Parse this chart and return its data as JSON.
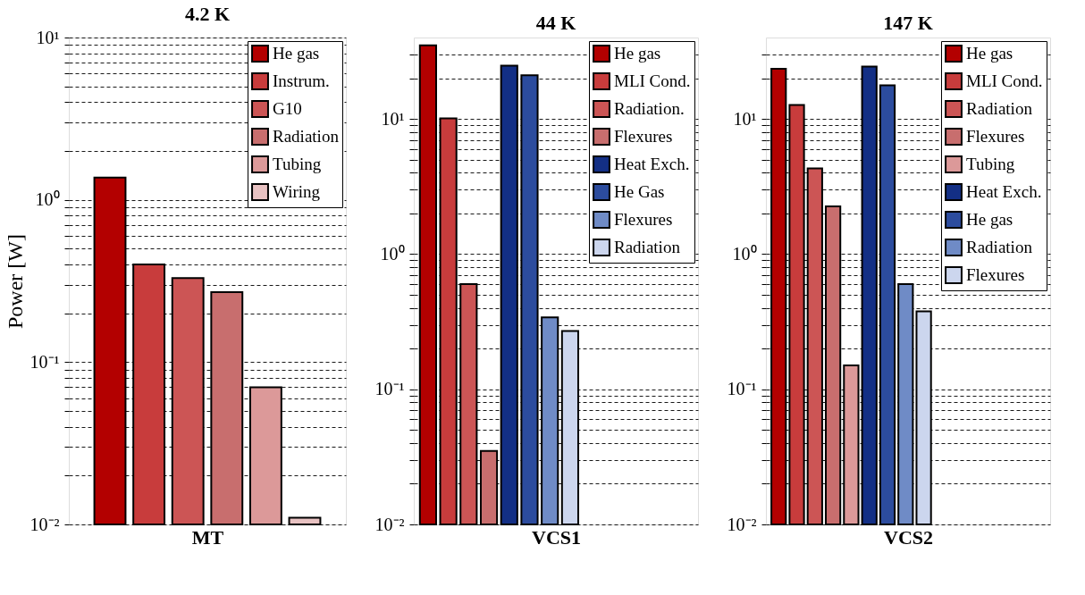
{
  "chart_data": [
    {
      "type": "bar",
      "title": "4.2 K",
      "xlabel": "MT",
      "ylabel": "Power [W]",
      "categories": [
        null
      ],
      "log": true,
      "ylim": [
        0.01,
        10
      ],
      "grid": "y",
      "legend": "top right",
      "tick_labels": "y",
      "yticks": [
        {
          "value": 0.01,
          "label": "10⁻²"
        },
        {
          "value": 0.02,
          "label": null
        },
        {
          "value": 0.03,
          "label": null
        },
        {
          "value": 0.04,
          "label": null
        },
        {
          "value": 0.05,
          "label": null
        },
        {
          "value": 0.06,
          "label": null
        },
        {
          "value": 0.07,
          "label": null
        },
        {
          "value": 0.08,
          "label": null
        },
        {
          "value": 0.09,
          "label": null
        },
        {
          "value": 0.1,
          "label": "10⁻¹"
        },
        {
          "value": 0.2,
          "label": null
        },
        {
          "value": 0.3,
          "label": null
        },
        {
          "value": 0.4,
          "label": null
        },
        {
          "value": 0.5,
          "label": null
        },
        {
          "value": 0.6,
          "label": null
        },
        {
          "value": 0.7,
          "label": null
        },
        {
          "value": 0.8,
          "label": null
        },
        {
          "value": 0.9,
          "label": null
        },
        {
          "value": 1,
          "label": "10⁰"
        },
        {
          "value": 2,
          "label": null
        },
        {
          "value": 3,
          "label": null
        },
        {
          "value": 4,
          "label": null
        },
        {
          "value": 5,
          "label": null
        },
        {
          "value": 6,
          "label": null
        },
        {
          "value": 7,
          "label": null
        },
        {
          "value": 8,
          "label": null
        },
        {
          "value": 9,
          "label": null
        },
        {
          "value": 10,
          "label": "10¹"
        }
      ],
      "series": [
        {
          "name": "He gas",
          "color": "#b30000",
          "values": [
            1.37
          ]
        },
        {
          "name": "Instrum.",
          "color": "#c83c3c",
          "values": [
            0.4
          ]
        },
        {
          "name": "G10",
          "color": "#cc5555",
          "values": [
            0.33
          ]
        },
        {
          "name": "Radiation",
          "color": "#c86e6e",
          "values": [
            0.27
          ]
        },
        {
          "name": "Tubing",
          "color": "#dc9999",
          "values": [
            0.07
          ]
        },
        {
          "name": "Wiring",
          "color": "#e8c2c2",
          "values": [
            0.011
          ]
        }
      ]
    },
    {
      "type": "bar",
      "title": "44 K",
      "xlabel": "VCS1",
      "categories": [
        null
      ],
      "log": true,
      "ylim": [
        0.01,
        40
      ],
      "grid": "y",
      "legend": "top right",
      "tick_labels": "y",
      "yticks": [
        {
          "value": 0.01,
          "label": "10⁻²"
        },
        {
          "value": 0.02,
          "label": null
        },
        {
          "value": 0.03,
          "label": null
        },
        {
          "value": 0.04,
          "label": null
        },
        {
          "value": 0.05,
          "label": null
        },
        {
          "value": 0.06,
          "label": null
        },
        {
          "value": 0.07,
          "label": null
        },
        {
          "value": 0.08,
          "label": null
        },
        {
          "value": 0.09,
          "label": null
        },
        {
          "value": 0.1,
          "label": "10⁻¹"
        },
        {
          "value": 0.2,
          "label": null
        },
        {
          "value": 0.3,
          "label": null
        },
        {
          "value": 0.4,
          "label": null
        },
        {
          "value": 0.5,
          "label": null
        },
        {
          "value": 0.6,
          "label": null
        },
        {
          "value": 0.7,
          "label": null
        },
        {
          "value": 0.8,
          "label": null
        },
        {
          "value": 0.9,
          "label": null
        },
        {
          "value": 1,
          "label": "10⁰"
        },
        {
          "value": 2,
          "label": null
        },
        {
          "value": 3,
          "label": null
        },
        {
          "value": 4,
          "label": null
        },
        {
          "value": 5,
          "label": null
        },
        {
          "value": 6,
          "label": null
        },
        {
          "value": 7,
          "label": null
        },
        {
          "value": 8,
          "label": null
        },
        {
          "value": 9,
          "label": null
        },
        {
          "value": 10,
          "label": "10¹"
        },
        {
          "value": 20,
          "label": null
        },
        {
          "value": 30,
          "label": null
        }
      ],
      "series": [
        {
          "name": "He gas",
          "color": "#b30000",
          "values": [
            35
          ]
        },
        {
          "name": "MLI Cond.",
          "color": "#c83c3c",
          "values": [
            10.1
          ]
        },
        {
          "name": "Radiation.",
          "color": "#cc5555",
          "values": [
            0.6
          ]
        },
        {
          "name": "Flexures",
          "color": "#c86e6e",
          "values": [
            0.035
          ]
        },
        {
          "name": "Heat Exch.",
          "color": "#132f85",
          "values": [
            24.8
          ]
        },
        {
          "name": "He Gas",
          "color": "#2c4c9e",
          "values": [
            21
          ]
        },
        {
          "name": "Flexures",
          "color": "#6f8bc6",
          "values": [
            0.34
          ]
        },
        {
          "name": "Radiation",
          "color": "#ccd6ee",
          "values": [
            0.27
          ]
        }
      ]
    },
    {
      "type": "bar",
      "title": "147 K",
      "xlabel": "VCS2",
      "categories": [
        null
      ],
      "log": true,
      "ylim": [
        0.01,
        40
      ],
      "grid": "y",
      "legend": "top right",
      "tick_labels": "y",
      "yticks": [
        {
          "value": 0.01,
          "label": "10⁻²"
        },
        {
          "value": 0.02,
          "label": null
        },
        {
          "value": 0.03,
          "label": null
        },
        {
          "value": 0.04,
          "label": null
        },
        {
          "value": 0.05,
          "label": null
        },
        {
          "value": 0.06,
          "label": null
        },
        {
          "value": 0.07,
          "label": null
        },
        {
          "value": 0.08,
          "label": null
        },
        {
          "value": 0.09,
          "label": null
        },
        {
          "value": 0.1,
          "label": "10⁻¹"
        },
        {
          "value": 0.2,
          "label": null
        },
        {
          "value": 0.3,
          "label": null
        },
        {
          "value": 0.4,
          "label": null
        },
        {
          "value": 0.5,
          "label": null
        },
        {
          "value": 0.6,
          "label": null
        },
        {
          "value": 0.7,
          "label": null
        },
        {
          "value": 0.8,
          "label": null
        },
        {
          "value": 0.9,
          "label": null
        },
        {
          "value": 1,
          "label": "10⁰"
        },
        {
          "value": 2,
          "label": null
        },
        {
          "value": 3,
          "label": null
        },
        {
          "value": 4,
          "label": null
        },
        {
          "value": 5,
          "label": null
        },
        {
          "value": 6,
          "label": null
        },
        {
          "value": 7,
          "label": null
        },
        {
          "value": 8,
          "label": null
        },
        {
          "value": 9,
          "label": null
        },
        {
          "value": 10,
          "label": "10¹"
        },
        {
          "value": 20,
          "label": null
        },
        {
          "value": 30,
          "label": null
        }
      ],
      "series": [
        {
          "name": "He gas",
          "color": "#b30000",
          "values": [
            23.5
          ]
        },
        {
          "name": "MLI Cond.",
          "color": "#c83c3c",
          "values": [
            12.7
          ]
        },
        {
          "name": "Radiation",
          "color": "#cc5555",
          "values": [
            4.3
          ]
        },
        {
          "name": "Flexures",
          "color": "#c86e6e",
          "values": [
            2.25
          ]
        },
        {
          "name": "Tubing",
          "color": "#dc9999",
          "values": [
            0.15
          ]
        },
        {
          "name": "Heat Exch.",
          "color": "#132f85",
          "values": [
            24.4
          ]
        },
        {
          "name": "He gas",
          "color": "#2c4c9e",
          "values": [
            17.7
          ]
        },
        {
          "name": "Radiation",
          "color": "#6f8bc6",
          "values": [
            0.6
          ]
        },
        {
          "name": "Flexures",
          "color": "#ccd6ee",
          "values": [
            0.377
          ]
        }
      ]
    }
  ]
}
